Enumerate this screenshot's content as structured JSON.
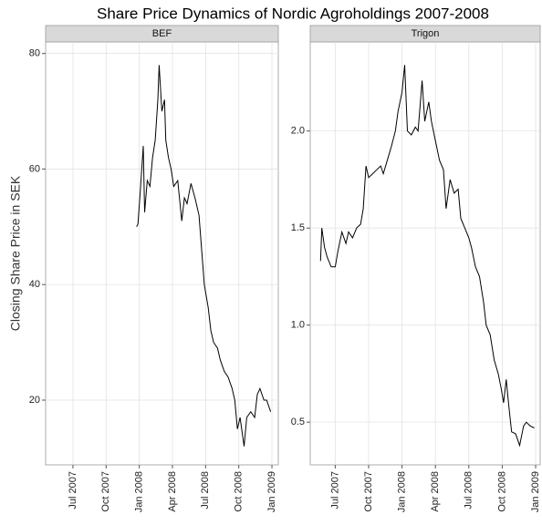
{
  "title": "Share Price Dynamics of Nordic Agroholdings 2007-2008",
  "ylabel": "Closing Share Price in SEK",
  "chart_data": [
    {
      "type": "line",
      "title": "BEF",
      "color": "#000000",
      "grid": true,
      "x": [
        2007.98,
        2007.99,
        2008.01,
        2008.03,
        2008.04,
        2008.06,
        2008.08,
        2008.1,
        2008.12,
        2008.14,
        2008.15,
        2008.17,
        2008.19,
        2008.2,
        2008.22,
        2008.24,
        2008.26,
        2008.29,
        2008.32,
        2008.34,
        2008.36,
        2008.39,
        2008.42,
        2008.45,
        2008.47,
        2008.49,
        2008.52,
        2008.54,
        2008.56,
        2008.59,
        2008.61,
        2008.64,
        2008.67,
        2008.7,
        2008.72,
        2008.74,
        2008.76,
        2008.79,
        2008.81,
        2008.84,
        2008.87,
        2008.89,
        2008.91,
        2008.94,
        2008.96,
        2008.99
      ],
      "values": [
        50,
        50.5,
        57,
        64,
        52.5,
        58,
        57,
        62,
        65,
        72,
        78,
        70,
        72,
        65,
        62,
        60,
        57,
        58,
        51,
        55,
        54,
        57.5,
        55,
        52,
        46,
        40,
        36,
        32,
        30,
        29,
        27,
        25,
        24,
        22,
        20,
        15,
        17,
        12,
        17,
        18,
        17,
        21,
        22,
        20,
        20,
        18
      ],
      "xlim": [
        2007.294,
        2009.048
      ],
      "ylim": [
        8.8,
        82.0
      ],
      "xticks": [
        {
          "value": 2007.5,
          "label": "Jul 2007"
        },
        {
          "value": 2007.75,
          "label": "Oct 2007"
        },
        {
          "value": 2008.0,
          "label": "Jan 2008"
        },
        {
          "value": 2008.25,
          "label": "Apr 2008"
        },
        {
          "value": 2008.5,
          "label": "Jul 2008"
        },
        {
          "value": 2008.75,
          "label": "Oct 2008"
        },
        {
          "value": 2009.0,
          "label": "Jan 2009"
        }
      ],
      "yticks": [
        20,
        40,
        60,
        80
      ]
    },
    {
      "type": "line",
      "title": "Trigon",
      "color": "#000000",
      "grid": true,
      "x": [
        2007.39,
        2007.4,
        2007.42,
        2007.44,
        2007.47,
        2007.5,
        2007.52,
        2007.55,
        2007.58,
        2007.6,
        2007.63,
        2007.66,
        2007.69,
        2007.71,
        2007.73,
        2007.75,
        2007.78,
        2007.81,
        2007.84,
        2007.86,
        2007.89,
        2007.92,
        2007.95,
        2007.97,
        2008.0,
        2008.02,
        2008.04,
        2008.07,
        2008.1,
        2008.12,
        2008.15,
        2008.17,
        2008.2,
        2008.22,
        2008.25,
        2008.28,
        2008.31,
        2008.33,
        2008.36,
        2008.39,
        2008.42,
        2008.44,
        2008.47,
        2008.5,
        2008.52,
        2008.55,
        2008.58,
        2008.61,
        2008.63,
        2008.66,
        2008.69,
        2008.72,
        2008.74,
        2008.76,
        2008.78,
        2008.8,
        2008.82,
        2008.85,
        2008.88,
        2008.91,
        2008.93,
        2008.96,
        2008.99
      ],
      "values": [
        1.33,
        1.5,
        1.4,
        1.35,
        1.3,
        1.3,
        1.38,
        1.48,
        1.42,
        1.48,
        1.45,
        1.5,
        1.52,
        1.6,
        1.82,
        1.76,
        1.78,
        1.8,
        1.82,
        1.78,
        1.85,
        1.92,
        2.0,
        2.1,
        2.2,
        2.34,
        2.0,
        1.98,
        2.02,
        2.0,
        2.26,
        2.05,
        2.15,
        2.05,
        1.95,
        1.85,
        1.8,
        1.6,
        1.75,
        1.68,
        1.7,
        1.55,
        1.5,
        1.45,
        1.4,
        1.3,
        1.25,
        1.12,
        1.0,
        0.95,
        0.82,
        0.75,
        0.68,
        0.6,
        0.72,
        0.58,
        0.45,
        0.44,
        0.38,
        0.48,
        0.5,
        0.48,
        0.47
      ],
      "xlim": [
        2007.313,
        2009.034
      ],
      "ylim": [
        0.28,
        2.459
      ],
      "xticks": [
        {
          "value": 2007.5,
          "label": "Jul 2007"
        },
        {
          "value": 2007.75,
          "label": "Oct 2007"
        },
        {
          "value": 2008.0,
          "label": "Jan 2008"
        },
        {
          "value": 2008.25,
          "label": "Apr 2008"
        },
        {
          "value": 2008.5,
          "label": "Jul 2008"
        },
        {
          "value": 2008.75,
          "label": "Oct 2008"
        },
        {
          "value": 2009.0,
          "label": "Jan 2009"
        }
      ],
      "yticks": [
        0.5,
        {
          "value": 1.0,
          "label": "1.0"
        },
        1.5,
        {
          "value": 2.0,
          "label": "2.0"
        }
      ]
    }
  ]
}
